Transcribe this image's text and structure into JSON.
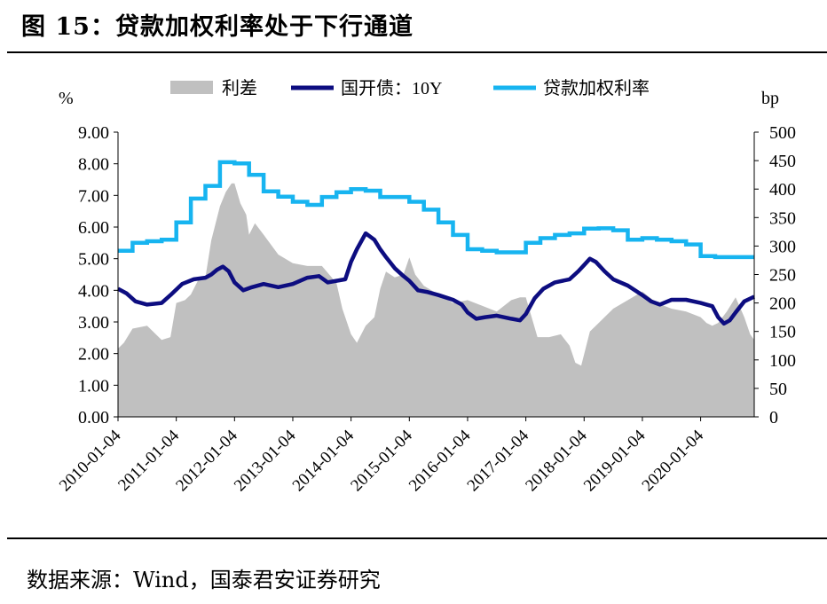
{
  "figure": {
    "title": "图 15：贷款加权利率处于下行通道",
    "source": "数据来源：Wind，国泰君安证券研究"
  },
  "colors": {
    "spread": "#c0c0c0",
    "bond10y": "#0d0d80",
    "loan_rate": "#17b4f0"
  },
  "chart_data": {
    "type": "line",
    "title": "",
    "ylabel_left": "%",
    "ylabel_right": "bp",
    "ylim_left": [
      0,
      9
    ],
    "ylim_right": [
      0,
      500
    ],
    "yticks_left": [
      "0.00",
      "1.00",
      "2.00",
      "3.00",
      "4.00",
      "5.00",
      "6.00",
      "7.00",
      "8.00",
      "9.00"
    ],
    "yticks_right": [
      "0",
      "50",
      "100",
      "150",
      "200",
      "250",
      "300",
      "350",
      "400",
      "450",
      "500"
    ],
    "x_range": [
      2010.0,
      2020.92
    ],
    "xtick_labels": [
      "2010-01-04",
      "2011-01-04",
      "2012-01-04",
      "2013-01-04",
      "2014-01-04",
      "2015-01-04",
      "2016-01-04",
      "2017-01-04",
      "2018-01-04",
      "2019-01-04",
      "2020-01-04"
    ],
    "xtick_years": [
      2010,
      2011,
      2012,
      2013,
      2014,
      2015,
      2016,
      2017,
      2018,
      2019,
      2020
    ],
    "legend": {
      "placement": "top",
      "labels": [
        "利差",
        "国开债：10Y",
        "贷款加权利率"
      ]
    },
    "series": [
      {
        "name": "利差",
        "axis": "right",
        "kind": "area",
        "x": [
          2010.0,
          2010.1,
          2010.25,
          2010.5,
          2010.75,
          2010.9,
          2011.0,
          2011.15,
          2011.25,
          2011.4,
          2011.5,
          2011.6,
          2011.75,
          2011.85,
          2011.95,
          2012.0,
          2012.1,
          2012.2,
          2012.25,
          2012.35,
          2012.5,
          2012.75,
          2013.0,
          2013.25,
          2013.5,
          2013.75,
          2013.85,
          2014.0,
          2014.1,
          2014.25,
          2014.4,
          2014.5,
          2014.6,
          2014.75,
          2014.9,
          2015.0,
          2015.1,
          2015.25,
          2015.5,
          2015.75,
          2016.0,
          2016.25,
          2016.5,
          2016.75,
          2016.9,
          2017.0,
          2017.2,
          2017.4,
          2017.6,
          2017.75,
          2017.85,
          2017.95,
          2018.0,
          2018.1,
          2018.25,
          2018.5,
          2018.75,
          2019.0,
          2019.25,
          2019.5,
          2019.75,
          2020.0,
          2020.1,
          2020.2,
          2020.3,
          2020.45,
          2020.6,
          2020.75,
          2020.85,
          2020.92
        ],
        "values": [
          120,
          130,
          155,
          160,
          135,
          140,
          200,
          205,
          215,
          245,
          245,
          310,
          370,
          395,
          410,
          410,
          375,
          355,
          320,
          340,
          320,
          285,
          270,
          265,
          265,
          235,
          190,
          145,
          130,
          160,
          175,
          225,
          255,
          245,
          250,
          280,
          250,
          230,
          215,
          200,
          205,
          195,
          185,
          205,
          210,
          210,
          140,
          140,
          145,
          125,
          95,
          90,
          110,
          150,
          165,
          190,
          205,
          220,
          200,
          190,
          185,
          175,
          165,
          160,
          165,
          185,
          210,
          175,
          145,
          135
        ]
      },
      {
        "name": "国开债：10Y",
        "axis": "left",
        "kind": "line",
        "x": [
          2010.0,
          2010.15,
          2010.3,
          2010.5,
          2010.75,
          2010.9,
          2011.1,
          2011.3,
          2011.5,
          2011.6,
          2011.7,
          2011.8,
          2011.9,
          2012.0,
          2012.15,
          2012.3,
          2012.5,
          2012.75,
          2013.0,
          2013.25,
          2013.45,
          2013.6,
          2013.75,
          2013.9,
          2014.0,
          2014.1,
          2014.25,
          2014.4,
          2014.5,
          2014.6,
          2014.75,
          2014.9,
          2015.0,
          2015.15,
          2015.3,
          2015.5,
          2015.75,
          2015.9,
          2016.0,
          2016.15,
          2016.3,
          2016.5,
          2016.75,
          2016.9,
          2017.0,
          2017.15,
          2017.3,
          2017.5,
          2017.75,
          2017.9,
          2018.0,
          2018.1,
          2018.2,
          2018.35,
          2018.5,
          2018.75,
          2019.0,
          2019.15,
          2019.3,
          2019.5,
          2019.75,
          2020.0,
          2020.1,
          2020.2,
          2020.3,
          2020.4,
          2020.5,
          2020.6,
          2020.75,
          2020.92
        ],
        "values": [
          4.05,
          3.9,
          3.65,
          3.55,
          3.6,
          3.85,
          4.2,
          4.35,
          4.4,
          4.5,
          4.65,
          4.75,
          4.6,
          4.25,
          4.0,
          4.1,
          4.2,
          4.1,
          4.2,
          4.4,
          4.45,
          4.25,
          4.3,
          4.35,
          4.9,
          5.3,
          5.8,
          5.6,
          5.3,
          5.05,
          4.7,
          4.45,
          4.3,
          4.0,
          3.95,
          3.85,
          3.7,
          3.55,
          3.3,
          3.1,
          3.15,
          3.2,
          3.1,
          3.05,
          3.25,
          3.75,
          4.05,
          4.25,
          4.35,
          4.6,
          4.8,
          5.0,
          4.9,
          4.6,
          4.35,
          4.15,
          3.85,
          3.65,
          3.55,
          3.7,
          3.7,
          3.6,
          3.55,
          3.5,
          3.15,
          2.95,
          3.05,
          3.3,
          3.65,
          3.8
        ]
      },
      {
        "name": "贷款加权利率",
        "axis": "left",
        "kind": "step",
        "x": [
          2010.0,
          2010.25,
          2010.5,
          2010.75,
          2011.0,
          2011.25,
          2011.5,
          2011.75,
          2012.0,
          2012.25,
          2012.5,
          2012.75,
          2013.0,
          2013.25,
          2013.5,
          2013.75,
          2014.0,
          2014.25,
          2014.5,
          2014.75,
          2015.0,
          2015.25,
          2015.5,
          2015.75,
          2016.0,
          2016.25,
          2016.5,
          2016.75,
          2017.0,
          2017.25,
          2017.5,
          2017.75,
          2018.0,
          2018.25,
          2018.5,
          2018.75,
          2019.0,
          2019.25,
          2019.5,
          2019.75,
          2020.0,
          2020.25,
          2020.5,
          2020.75
        ],
        "values": [
          5.25,
          5.5,
          5.55,
          5.6,
          6.15,
          6.9,
          7.3,
          8.05,
          8.01,
          7.65,
          7.13,
          6.96,
          6.8,
          6.7,
          6.95,
          7.1,
          7.2,
          7.15,
          6.95,
          6.95,
          6.8,
          6.55,
          6.15,
          5.75,
          5.3,
          5.25,
          5.2,
          5.2,
          5.5,
          5.65,
          5.75,
          5.8,
          5.95,
          5.96,
          5.9,
          5.6,
          5.65,
          5.6,
          5.55,
          5.45,
          5.08,
          5.05,
          5.05,
          5.05
        ]
      }
    ]
  }
}
